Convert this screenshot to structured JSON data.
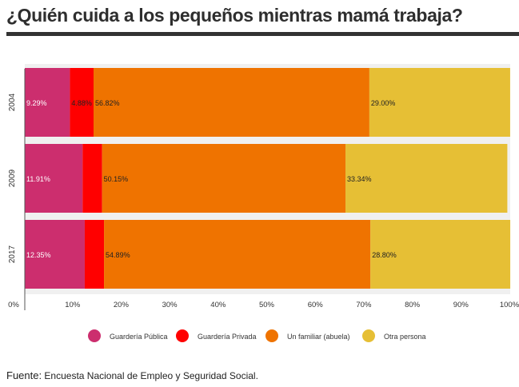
{
  "title": "¿Quién cuida a los pequeños mientras mamá trabaja?",
  "source": {
    "label": "Fuente:",
    "text": " Encuesta Nacional de Empleo y Seguridad Social."
  },
  "chart_data": {
    "type": "bar",
    "orientation": "horizontal",
    "stacked": true,
    "categories": [
      "2004",
      "2009",
      "2017"
    ],
    "series": [
      {
        "name": "Guardería Pública",
        "values": [
          9.29,
          11.91,
          12.35
        ],
        "labels": [
          "9.29%",
          "11.91%",
          "12.35%"
        ],
        "color": "#cc2e6e"
      },
      {
        "name": "Guardería Privada",
        "values": [
          4.88,
          4.01,
          3.97
        ],
        "labels": [
          "4.88%",
          "",
          ""
        ],
        "color": "#ff0000"
      },
      {
        "name": "Un familiar (abuela)",
        "values": [
          56.82,
          50.15,
          54.89
        ],
        "labels": [
          "56.82%",
          "50.15%",
          "54.89%"
        ],
        "color": "#ef7300"
      },
      {
        "name": "Otra persona",
        "values": [
          29.0,
          33.34,
          28.8
        ],
        "labels": [
          "29.00%",
          "33.34%",
          "28.80%"
        ],
        "color": "#e6bf35"
      }
    ],
    "x_ticks": [
      "0%",
      "10%",
      "20%",
      "30%",
      "40%",
      "50%",
      "60%",
      "70%",
      "80%",
      "90%",
      "100%"
    ],
    "xlim": [
      0,
      100
    ],
    "legend_position": "bottom",
    "grid": false
  }
}
